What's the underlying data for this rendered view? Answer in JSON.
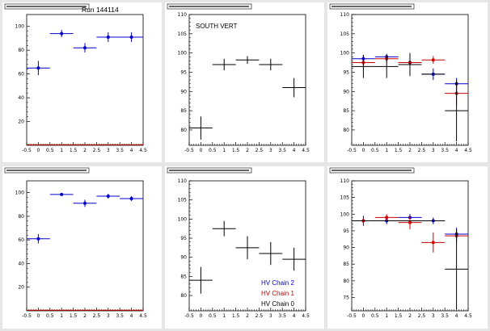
{
  "run_title": "Run 144114",
  "legend": [
    {
      "label": "HV Chain 2",
      "color": "#0000cc"
    },
    {
      "label": "HV Chain 1",
      "color": "#cc0000"
    },
    {
      "label": "HV Chain 0",
      "color": "#000000"
    }
  ],
  "colors": {
    "chain2": "#0000cc",
    "chain1": "#cc0000",
    "chain0": "#000000",
    "frame": "#000000",
    "canvas": "#e6e6e6"
  },
  "chart_data": [
    {
      "type": "scatter",
      "title": "",
      "xlim": [
        -0.5,
        4.5
      ],
      "ylim": [
        0,
        110
      ],
      "xticks": [
        "-0.5",
        "0",
        "0.5",
        "1",
        "1.5",
        "2",
        "2.5",
        "3",
        "3.5",
        "4",
        "4.5"
      ],
      "yticks": [
        "20",
        "40",
        "60",
        "80",
        "100"
      ],
      "ytick_values": [
        20,
        40,
        60,
        80,
        100
      ],
      "annotation": "",
      "series": [
        {
          "color": "#0000cc",
          "marker": "dot",
          "points": [
            {
              "x": 0,
              "y": 65,
              "err": 6
            },
            {
              "x": 1,
              "y": 94,
              "err": 3
            },
            {
              "x": 2,
              "y": 82,
              "err": 4
            },
            {
              "x": 3,
              "y": 91,
              "err": 4
            },
            {
              "x": 4,
              "y": 91,
              "err": 4
            }
          ]
        },
        {
          "color": "#cc0000",
          "marker": "flat",
          "points": [
            {
              "x": 0,
              "y": 0.5,
              "err": 0
            },
            {
              "x": 1,
              "y": 0.5,
              "err": 0
            },
            {
              "x": 2,
              "y": 0.5,
              "err": 0
            },
            {
              "x": 3,
              "y": 0.5,
              "err": 0
            },
            {
              "x": 4,
              "y": 0.5,
              "err": 0
            }
          ]
        }
      ]
    },
    {
      "type": "scatter",
      "title": "",
      "xlim": [
        -0.5,
        4.5
      ],
      "ylim": [
        76,
        110
      ],
      "xticks": [
        "-0.5",
        "0",
        "0.5",
        "1",
        "1.5",
        "2",
        "2.5",
        "3",
        "3.5",
        "4",
        "4.5"
      ],
      "yticks": [
        "80",
        "85",
        "90",
        "95",
        "100",
        "105",
        "110"
      ],
      "ytick_values": [
        80,
        85,
        90,
        95,
        100,
        105,
        110
      ],
      "annotation": "SOUTH VERT",
      "series": [
        {
          "color": "#000000",
          "marker": "none",
          "points": [
            {
              "x": 0,
              "y": 80.5,
              "err": 3
            },
            {
              "x": 1,
              "y": 97,
              "err": 1.5
            },
            {
              "x": 2,
              "y": 98.2,
              "err": 1
            },
            {
              "x": 3,
              "y": 97,
              "err": 1.5
            },
            {
              "x": 4,
              "y": 91,
              "err": 2.5
            }
          ]
        }
      ]
    },
    {
      "type": "scatter",
      "title": "",
      "xlim": [
        -0.5,
        4.5
      ],
      "ylim": [
        76,
        110
      ],
      "xticks": [
        "-0.5",
        "0",
        "0.5",
        "1",
        "1.5",
        "2",
        "2.5",
        "3",
        "3.5",
        "4",
        "4.5"
      ],
      "yticks": [
        "80",
        "85",
        "90",
        "95",
        "100",
        "105",
        "110"
      ],
      "ytick_values": [
        80,
        85,
        90,
        95,
        100,
        105,
        110
      ],
      "annotation": "",
      "series": [
        {
          "color": "#0000cc",
          "marker": "dot",
          "points": [
            {
              "x": 0,
              "y": 98.5,
              "err": 1
            },
            {
              "x": 1,
              "y": 99,
              "err": 0.8
            },
            {
              "x": 2,
              "y": 97.5,
              "err": 1
            },
            {
              "x": 3,
              "y": 94.5,
              "err": 1.5
            },
            {
              "x": 4,
              "y": 92,
              "err": 1.5
            }
          ]
        },
        {
          "color": "#cc0000",
          "marker": "dot",
          "points": [
            {
              "x": 0,
              "y": 97.5,
              "err": 1.5
            },
            {
              "x": 1,
              "y": 98.5,
              "err": 1
            },
            {
              "x": 2,
              "y": 97.5,
              "err": 1
            },
            {
              "x": 3,
              "y": 98.2,
              "err": 1
            },
            {
              "x": 4,
              "y": 89.5,
              "err": 3
            }
          ]
        },
        {
          "color": "#000000",
          "marker": "none",
          "points": [
            {
              "x": 0,
              "y": 96.5,
              "err": 3
            },
            {
              "x": 1,
              "y": 96.5,
              "err": 3
            },
            {
              "x": 2,
              "y": 97,
              "err": 3
            },
            {
              "x": 3,
              "y": 94.5,
              "err": 0
            },
            {
              "x": 4,
              "y": 85,
              "err": 8
            }
          ]
        }
      ]
    },
    {
      "type": "scatter",
      "title": "",
      "xlim": [
        -0.5,
        4.5
      ],
      "ylim": [
        0,
        110
      ],
      "xticks": [
        "-0.5",
        "0",
        "0.5",
        "1",
        "1.5",
        "2",
        "2.5",
        "3",
        "3.5",
        "4",
        "4.5"
      ],
      "yticks": [
        "20",
        "40",
        "60",
        "80",
        "100"
      ],
      "ytick_values": [
        20,
        40,
        60,
        80,
        100
      ],
      "annotation": "",
      "series": [
        {
          "color": "#0000cc",
          "marker": "dot",
          "points": [
            {
              "x": 0,
              "y": 61,
              "err": 4
            },
            {
              "x": 1,
              "y": 98.5,
              "err": 1
            },
            {
              "x": 2,
              "y": 91,
              "err": 3
            },
            {
              "x": 3,
              "y": 97,
              "err": 2
            },
            {
              "x": 4,
              "y": 95,
              "err": 2
            }
          ]
        },
        {
          "color": "#cc0000",
          "marker": "flat",
          "points": [
            {
              "x": 0,
              "y": 0.5,
              "err": 0
            },
            {
              "x": 1,
              "y": 0.5,
              "err": 0
            },
            {
              "x": 2,
              "y": 0.5,
              "err": 0
            },
            {
              "x": 3,
              "y": 0.5,
              "err": 0
            },
            {
              "x": 4,
              "y": 0.5,
              "err": 0
            }
          ]
        }
      ]
    },
    {
      "type": "scatter",
      "title": "",
      "xlim": [
        -0.5,
        4.5
      ],
      "ylim": [
        76,
        110
      ],
      "xticks": [
        "-0.5",
        "0",
        "0.5",
        "1",
        "1.5",
        "2",
        "2.5",
        "3",
        "3.5",
        "4",
        "4.5"
      ],
      "yticks": [
        "80",
        "85",
        "90",
        "95",
        "100",
        "105",
        "110"
      ],
      "ytick_values": [
        80,
        85,
        90,
        95,
        100,
        105,
        110
      ],
      "annotation": "",
      "series": [
        {
          "color": "#000000",
          "marker": "none",
          "points": [
            {
              "x": 0,
              "y": 84,
              "err": 3.5
            },
            {
              "x": 1,
              "y": 97.5,
              "err": 2
            },
            {
              "x": 2,
              "y": 92.5,
              "err": 3
            },
            {
              "x": 3,
              "y": 91,
              "err": 3
            },
            {
              "x": 4,
              "y": 89.5,
              "err": 3
            }
          ]
        }
      ]
    },
    {
      "type": "scatter",
      "title": "",
      "xlim": [
        -0.5,
        4.5
      ],
      "ylim": [
        71,
        110
      ],
      "xticks": [
        "-0.5",
        "0",
        "0.5",
        "1",
        "1.5",
        "2",
        "2.5",
        "3",
        "3.5",
        "4",
        "4.5"
      ],
      "yticks": [
        "75",
        "80",
        "85",
        "90",
        "95",
        "100",
        "105",
        "110"
      ],
      "ytick_values": [
        75,
        80,
        85,
        90,
        95,
        100,
        105,
        110
      ],
      "annotation": "",
      "series": [
        {
          "color": "#0000cc",
          "marker": "dot",
          "points": [
            {
              "x": 0,
              "y": 98,
              "err": 1.5
            },
            {
              "x": 1,
              "y": 98,
              "err": 1
            },
            {
              "x": 2,
              "y": 99,
              "err": 1
            },
            {
              "x": 3,
              "y": 98,
              "err": 1
            },
            {
              "x": 4,
              "y": 94,
              "err": 2
            }
          ]
        },
        {
          "color": "#cc0000",
          "marker": "dot",
          "points": [
            {
              "x": 0,
              "y": 98,
              "err": 1
            },
            {
              "x": 1,
              "y": 99,
              "err": 1
            },
            {
              "x": 2,
              "y": 97.5,
              "err": 2
            },
            {
              "x": 3,
              "y": 91.5,
              "err": 3
            },
            {
              "x": 4,
              "y": 93.5,
              "err": 2
            }
          ]
        },
        {
          "color": "#000000",
          "marker": "none",
          "points": [
            {
              "x": 0,
              "y": 98,
              "err": 0
            },
            {
              "x": 1,
              "y": 98,
              "err": 0
            },
            {
              "x": 2,
              "y": 98,
              "err": 0
            },
            {
              "x": 3,
              "y": 98,
              "err": 0
            },
            {
              "x": 4,
              "y": 83.5,
              "err": 12
            }
          ]
        }
      ]
    }
  ]
}
